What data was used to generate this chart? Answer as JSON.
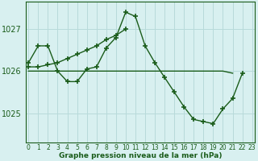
{
  "hours": [
    0,
    1,
    2,
    3,
    4,
    5,
    6,
    7,
    8,
    9,
    10,
    11,
    12,
    13,
    14,
    15,
    16,
    17,
    18,
    19,
    20,
    21,
    22,
    23
  ],
  "series1": [
    1026.2,
    1026.6,
    1026.6,
    1026.0,
    1025.75,
    1025.75,
    1026.05,
    1026.1,
    1026.55,
    1026.8,
    1027.4,
    1027.3,
    1026.6,
    1026.2,
    1025.85,
    1025.5,
    1025.15,
    1024.85,
    1024.8,
    1024.75,
    1025.1,
    1025.35,
    1025.95,
    null
  ],
  "series2": [
    1026.1,
    1026.1,
    1026.15,
    1026.2,
    1026.3,
    1026.4,
    1026.5,
    1026.6,
    1026.75,
    1026.85,
    1027.0,
    null,
    null,
    null,
    null,
    null,
    null,
    null,
    null,
    null,
    null,
    null,
    null,
    null
  ],
  "series3": [
    1026.0,
    1026.0,
    1026.0,
    1026.0,
    1026.0,
    1026.0,
    1026.0,
    1026.0,
    1026.0,
    1026.0,
    1026.0,
    1026.0,
    1026.0,
    1026.0,
    1026.0,
    1026.0,
    1026.0,
    1026.0,
    1026.0,
    1026.0,
    1026.0,
    1025.95,
    null,
    null
  ],
  "line_color": "#1a5c1a",
  "bg_color": "#d8f0f0",
  "grid_color": "#b8dada",
  "xlabel": "Graphe pression niveau de la mer (hPa)",
  "yticks": [
    1025,
    1026,
    1027
  ],
  "ylim": [
    1024.3,
    1027.65
  ],
  "xlim": [
    -0.3,
    23.3
  ]
}
